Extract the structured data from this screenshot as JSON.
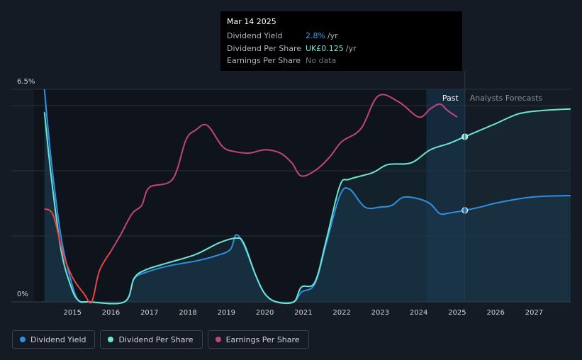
{
  "tooltip": {
    "date": "Mar 14 2025",
    "rows": [
      {
        "label": "Dividend Yield",
        "value": "2.8%",
        "unit": "/yr"
      },
      {
        "label": "Dividend Per Share",
        "value": "UK£0.125",
        "unit": "/yr"
      },
      {
        "label": "Earnings Per Share",
        "value": "No data",
        "unit": ""
      }
    ]
  },
  "legend": [
    {
      "label": "Dividend Yield",
      "color": "#2f8fe0"
    },
    {
      "label": "Dividend Per Share",
      "color": "#6ce5d3"
    },
    {
      "label": "Earnings Per Share",
      "color": "#c0457f"
    }
  ],
  "chart_data": {
    "type": "line",
    "ylim_labels": {
      "top": "6.5%",
      "bottom": "0%"
    },
    "ylim": [
      0,
      6.5
    ],
    "xlim": [
      2014.0,
      2027.95
    ],
    "x_ticks": [
      "2015",
      "2016",
      "2017",
      "2018",
      "2019",
      "2020",
      "2021",
      "2022",
      "2023",
      "2024",
      "2025",
      "2026",
      "2027"
    ],
    "past_label": "Past",
    "forecast_label": "Analysts Forecasts",
    "forecast_start": 2025.2,
    "colors": {
      "yield": "#2f8fe0",
      "dps": "#6ce5d3",
      "eps": "#c0457f",
      "eps_past": "#ea4444"
    },
    "series": [
      {
        "name": "Dividend Yield",
        "key": "yield",
        "points": [
          [
            2014.27,
            6.5
          ],
          [
            2014.45,
            4.3
          ],
          [
            2014.7,
            2.0
          ],
          [
            2014.95,
            0.7
          ],
          [
            2015.15,
            0.05
          ],
          [
            2015.45,
            0
          ],
          [
            2016.35,
            0
          ],
          [
            2016.6,
            0.7
          ],
          [
            2016.9,
            0.9
          ],
          [
            2017.5,
            1.1
          ],
          [
            2018.2,
            1.25
          ],
          [
            2018.7,
            1.4
          ],
          [
            2019.1,
            1.6
          ],
          [
            2019.25,
            2.05
          ],
          [
            2019.45,
            1.75
          ],
          [
            2019.75,
            0.85
          ],
          [
            2020.0,
            0.25
          ],
          [
            2020.3,
            0
          ],
          [
            2020.75,
            0
          ],
          [
            2020.95,
            0.3
          ],
          [
            2021.3,
            0.55
          ],
          [
            2021.6,
            1.8
          ],
          [
            2021.95,
            3.25
          ],
          [
            2022.2,
            3.45
          ],
          [
            2022.6,
            2.9
          ],
          [
            2023.0,
            2.9
          ],
          [
            2023.3,
            2.95
          ],
          [
            2023.6,
            3.2
          ],
          [
            2024.0,
            3.15
          ],
          [
            2024.3,
            3.0
          ],
          [
            2024.55,
            2.7
          ],
          [
            2024.8,
            2.72
          ],
          [
            2025.2,
            2.8
          ],
          [
            2025.6,
            2.9
          ],
          [
            2026.0,
            3.02
          ],
          [
            2026.6,
            3.15
          ],
          [
            2027.1,
            3.22
          ],
          [
            2027.95,
            3.25
          ]
        ]
      },
      {
        "name": "Dividend Per Share",
        "key": "dps",
        "points": [
          [
            2014.27,
            5.8
          ],
          [
            2014.45,
            3.8
          ],
          [
            2014.7,
            1.6
          ],
          [
            2014.95,
            0.5
          ],
          [
            2015.15,
            0.05
          ],
          [
            2015.45,
            0
          ],
          [
            2016.35,
            0
          ],
          [
            2016.6,
            0.72
          ],
          [
            2016.9,
            0.98
          ],
          [
            2017.5,
            1.2
          ],
          [
            2018.2,
            1.45
          ],
          [
            2018.8,
            1.8
          ],
          [
            2019.25,
            1.95
          ],
          [
            2019.45,
            1.8
          ],
          [
            2019.75,
            0.85
          ],
          [
            2020.0,
            0.25
          ],
          [
            2020.3,
            0
          ],
          [
            2020.75,
            0
          ],
          [
            2020.95,
            0.45
          ],
          [
            2021.3,
            0.6
          ],
          [
            2021.6,
            1.9
          ],
          [
            2021.95,
            3.55
          ],
          [
            2022.2,
            3.75
          ],
          [
            2022.8,
            3.95
          ],
          [
            2023.2,
            4.2
          ],
          [
            2023.8,
            4.25
          ],
          [
            2024.3,
            4.65
          ],
          [
            2024.8,
            4.85
          ],
          [
            2025.2,
            5.05
          ],
          [
            2025.6,
            5.25
          ],
          [
            2026.0,
            5.45
          ],
          [
            2026.6,
            5.75
          ],
          [
            2027.2,
            5.85
          ],
          [
            2027.95,
            5.9
          ]
        ]
      },
      {
        "name": "Earnings Per Share",
        "key": "eps",
        "points": [
          [
            2014.27,
            2.85
          ],
          [
            2014.5,
            2.65
          ],
          [
            2014.75,
            1.5
          ],
          [
            2015.0,
            0.75
          ],
          [
            2015.3,
            0.25
          ],
          [
            2015.5,
            0
          ],
          [
            2015.7,
            0.95
          ],
          [
            2016.0,
            1.55
          ],
          [
            2016.25,
            2.05
          ],
          [
            2016.55,
            2.7
          ],
          [
            2016.8,
            2.95
          ],
          [
            2017.0,
            3.5
          ],
          [
            2017.6,
            3.75
          ],
          [
            2017.95,
            4.95
          ],
          [
            2018.2,
            5.25
          ],
          [
            2018.5,
            5.4
          ],
          [
            2018.9,
            4.75
          ],
          [
            2019.2,
            4.6
          ],
          [
            2019.6,
            4.55
          ],
          [
            2020.0,
            4.65
          ],
          [
            2020.4,
            4.55
          ],
          [
            2020.7,
            4.25
          ],
          [
            2020.95,
            3.85
          ],
          [
            2021.35,
            4.05
          ],
          [
            2021.7,
            4.45
          ],
          [
            2022.0,
            4.9
          ],
          [
            2022.5,
            5.3
          ],
          [
            2022.95,
            6.3
          ],
          [
            2023.5,
            6.1
          ],
          [
            2024.0,
            5.65
          ],
          [
            2024.3,
            5.9
          ],
          [
            2024.55,
            6.05
          ],
          [
            2024.75,
            5.85
          ],
          [
            2025.0,
            5.65
          ]
        ]
      }
    ]
  }
}
